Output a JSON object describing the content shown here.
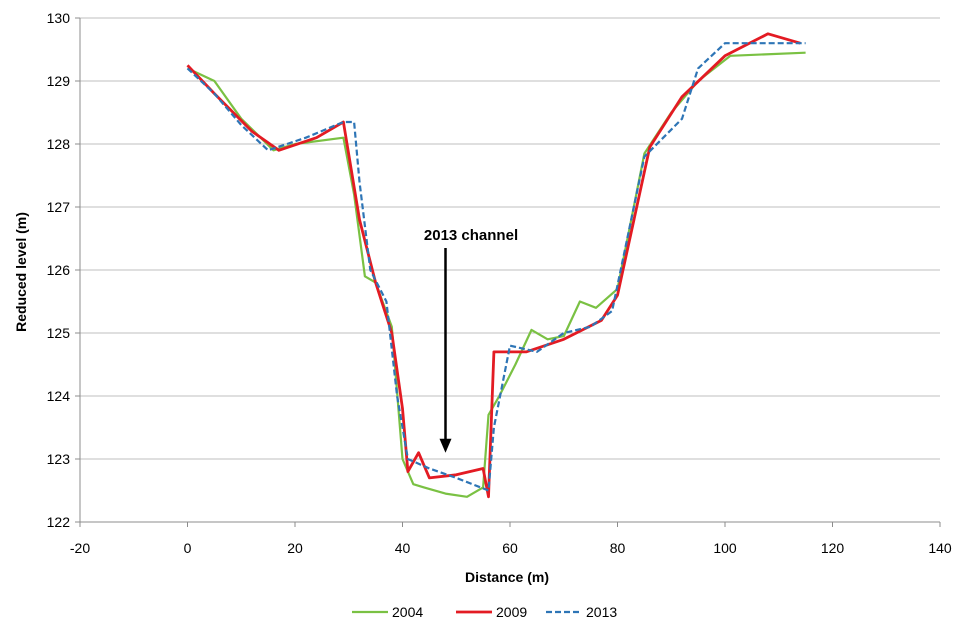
{
  "chart_data": {
    "type": "line",
    "xlabel": "Distance (m)",
    "ylabel": "Reduced level (m)",
    "xlim": [
      -20,
      140
    ],
    "ylim": [
      122,
      130
    ],
    "xticks": [
      "-20",
      "0",
      "20",
      "40",
      "60",
      "80",
      "100",
      "120",
      "140"
    ],
    "yticks": [
      "122",
      "123",
      "124",
      "125",
      "126",
      "127",
      "128",
      "129",
      "130"
    ],
    "grid": "horizontal",
    "legend_position": "bottom",
    "annotation": {
      "text": "2013 channel",
      "x": 48,
      "y": 123.1
    },
    "series": [
      {
        "name": "2004",
        "color": "#7ac143",
        "dash": "solid",
        "points": [
          [
            0,
            129.2
          ],
          [
            5,
            129.0
          ],
          [
            10,
            128.4
          ],
          [
            16,
            127.9
          ],
          [
            20,
            128.0
          ],
          [
            29,
            128.1
          ],
          [
            31,
            127.2
          ],
          [
            33,
            125.9
          ],
          [
            35,
            125.8
          ],
          [
            38,
            125.1
          ],
          [
            40,
            123.0
          ],
          [
            42,
            122.6
          ],
          [
            44,
            122.55
          ],
          [
            48,
            122.45
          ],
          [
            52,
            122.4
          ],
          [
            55,
            122.55
          ],
          [
            56,
            123.7
          ],
          [
            58,
            124.0
          ],
          [
            61,
            124.5
          ],
          [
            64,
            125.05
          ],
          [
            67,
            124.9
          ],
          [
            70,
            124.95
          ],
          [
            73,
            125.5
          ],
          [
            76,
            125.4
          ],
          [
            80,
            125.7
          ],
          [
            85,
            127.85
          ],
          [
            90,
            128.5
          ],
          [
            95,
            129.0
          ],
          [
            101,
            129.4
          ],
          [
            115,
            129.45
          ]
        ]
      },
      {
        "name": "2009",
        "color": "#e31b23",
        "dash": "solid",
        "points": [
          [
            0,
            129.25
          ],
          [
            5,
            128.8
          ],
          [
            12,
            128.2
          ],
          [
            17,
            127.9
          ],
          [
            24,
            128.1
          ],
          [
            29,
            128.35
          ],
          [
            32,
            126.8
          ],
          [
            35,
            125.8
          ],
          [
            38,
            125.0
          ],
          [
            40,
            123.8
          ],
          [
            41,
            122.8
          ],
          [
            43,
            123.1
          ],
          [
            45,
            122.7
          ],
          [
            50,
            122.75
          ],
          [
            55,
            122.85
          ],
          [
            56,
            122.4
          ],
          [
            57,
            124.7
          ],
          [
            63,
            124.7
          ],
          [
            70,
            124.9
          ],
          [
            77,
            125.2
          ],
          [
            80,
            125.6
          ],
          [
            86,
            127.95
          ],
          [
            92,
            128.75
          ],
          [
            100,
            129.4
          ],
          [
            108,
            129.75
          ],
          [
            114,
            129.6
          ]
        ]
      },
      {
        "name": "2013",
        "color": "#2e75b6",
        "dash": "dashed",
        "points": [
          [
            0,
            129.2
          ],
          [
            5,
            128.8
          ],
          [
            10,
            128.3
          ],
          [
            15,
            127.9
          ],
          [
            22,
            128.1
          ],
          [
            29,
            128.35
          ],
          [
            31,
            128.35
          ],
          [
            32,
            127.4
          ],
          [
            34,
            126.0
          ],
          [
            37,
            125.5
          ],
          [
            39,
            124.0
          ],
          [
            41,
            123.0
          ],
          [
            45,
            122.85
          ],
          [
            50,
            122.7
          ],
          [
            56,
            122.5
          ],
          [
            57,
            123.5
          ],
          [
            60,
            124.8
          ],
          [
            65,
            124.7
          ],
          [
            70,
            125.0
          ],
          [
            75,
            125.1
          ],
          [
            79,
            125.35
          ],
          [
            85,
            127.8
          ],
          [
            92,
            128.4
          ],
          [
            95,
            129.2
          ],
          [
            100,
            129.6
          ],
          [
            107,
            129.6
          ],
          [
            115,
            129.6
          ]
        ]
      }
    ]
  }
}
